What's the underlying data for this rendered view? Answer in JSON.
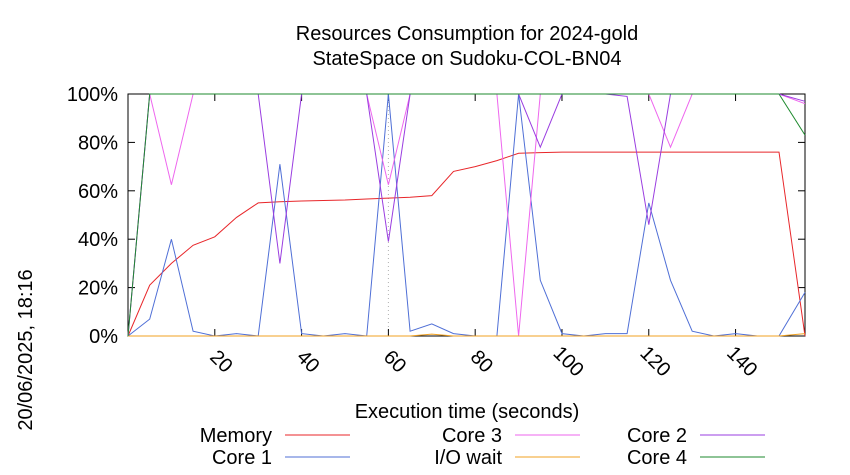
{
  "chart_data": {
    "type": "line",
    "title": [
      "Resources Consumption for 2024-gold",
      "StateSpace on Sudoku-COL-BN04"
    ],
    "xlabel": "Execution time (seconds)",
    "ylabel": "",
    "side_label": "20/06/2025, 18:16",
    "xlim": [
      0,
      156
    ],
    "ylim": [
      0,
      100
    ],
    "x_ticks": [
      20,
      40,
      60,
      80,
      100,
      120,
      140
    ],
    "y_ticks": [
      {
        "v": 0,
        "label": "0%"
      },
      {
        "v": 20,
        "label": "20%"
      },
      {
        "v": 40,
        "label": "40%"
      },
      {
        "v": 60,
        "label": "60%"
      },
      {
        "v": 80,
        "label": "80%"
      },
      {
        "v": 100,
        "label": "100%"
      }
    ],
    "grid": "x at 60 only (dotted)",
    "legend_position": "bottom",
    "series": [
      {
        "name": "Memory",
        "color": "#e8262a",
        "points": [
          [
            0,
            0
          ],
          [
            5,
            21
          ],
          [
            10,
            30
          ],
          [
            15,
            37.5
          ],
          [
            20,
            41
          ],
          [
            25,
            49
          ],
          [
            30,
            55
          ],
          [
            35,
            55.5
          ],
          [
            40,
            55.8
          ],
          [
            45,
            56
          ],
          [
            50,
            56.2
          ],
          [
            55,
            56.6
          ],
          [
            60,
            57
          ],
          [
            65,
            57.3
          ],
          [
            70,
            58
          ],
          [
            75,
            68
          ],
          [
            80,
            70
          ],
          [
            85,
            72.5
          ],
          [
            90,
            75.5
          ],
          [
            95,
            75.8
          ],
          [
            100,
            76
          ],
          [
            105,
            76
          ],
          [
            110,
            76
          ],
          [
            115,
            76
          ],
          [
            120,
            76
          ],
          [
            125,
            76
          ],
          [
            130,
            76
          ],
          [
            135,
            76
          ],
          [
            140,
            76
          ],
          [
            145,
            76
          ],
          [
            150,
            76
          ],
          [
            156,
            0
          ]
        ]
      },
      {
        "name": "Core 1",
        "color": "#4f6fd6",
        "points": [
          [
            0,
            0
          ],
          [
            5,
            7
          ],
          [
            10,
            40
          ],
          [
            15,
            2
          ],
          [
            20,
            0
          ],
          [
            25,
            1
          ],
          [
            30,
            0
          ],
          [
            35,
            71
          ],
          [
            40,
            1
          ],
          [
            45,
            0
          ],
          [
            50,
            1
          ],
          [
            55,
            0
          ],
          [
            60,
            100
          ],
          [
            65,
            2
          ],
          [
            70,
            5
          ],
          [
            75,
            1
          ],
          [
            80,
            0
          ],
          [
            85,
            0
          ],
          [
            90,
            100
          ],
          [
            95,
            23
          ],
          [
            100,
            1
          ],
          [
            105,
            0
          ],
          [
            110,
            1
          ],
          [
            115,
            1
          ],
          [
            120,
            55
          ],
          [
            125,
            23
          ],
          [
            130,
            2
          ],
          [
            135,
            0
          ],
          [
            140,
            1
          ],
          [
            145,
            0
          ],
          [
            150,
            0
          ],
          [
            156,
            18
          ]
        ]
      },
      {
        "name": "Core 3",
        "color": "#ee66ee",
        "points": [
          [
            0,
            0
          ],
          [
            5,
            100
          ],
          [
            10,
            62.5
          ],
          [
            15,
            100
          ],
          [
            20,
            100
          ],
          [
            25,
            100
          ],
          [
            30,
            100
          ],
          [
            35,
            100
          ],
          [
            40,
            100
          ],
          [
            45,
            100
          ],
          [
            50,
            100
          ],
          [
            55,
            100
          ],
          [
            60,
            62.5
          ],
          [
            65,
            100
          ],
          [
            70,
            100
          ],
          [
            75,
            100
          ],
          [
            80,
            100
          ],
          [
            85,
            100
          ],
          [
            90,
            0
          ],
          [
            95,
            100
          ],
          [
            100,
            100
          ],
          [
            105,
            100
          ],
          [
            110,
            100
          ],
          [
            115,
            100
          ],
          [
            120,
            100
          ],
          [
            125,
            78
          ],
          [
            130,
            100
          ],
          [
            135,
            100
          ],
          [
            140,
            100
          ],
          [
            145,
            100
          ],
          [
            150,
            100
          ],
          [
            156,
            96
          ]
        ]
      },
      {
        "name": "I/O wait",
        "color": "#f0a020",
        "points": [
          [
            0,
            0
          ],
          [
            5,
            0
          ],
          [
            10,
            0
          ],
          [
            15,
            0
          ],
          [
            20,
            0
          ],
          [
            25,
            0
          ],
          [
            30,
            0
          ],
          [
            35,
            0
          ],
          [
            40,
            0
          ],
          [
            45,
            0
          ],
          [
            50,
            0
          ],
          [
            55,
            0
          ],
          [
            60,
            0
          ],
          [
            65,
            0
          ],
          [
            70,
            0.8
          ],
          [
            75,
            0
          ],
          [
            80,
            0
          ],
          [
            85,
            0
          ],
          [
            90,
            0
          ],
          [
            95,
            0
          ],
          [
            100,
            0
          ],
          [
            105,
            0
          ],
          [
            110,
            0
          ],
          [
            115,
            0
          ],
          [
            120,
            0
          ],
          [
            125,
            0
          ],
          [
            130,
            0
          ],
          [
            135,
            0
          ],
          [
            140,
            0
          ],
          [
            145,
            0
          ],
          [
            150,
            0
          ],
          [
            156,
            1
          ]
        ]
      },
      {
        "name": "Core 2",
        "color": "#9a3de0",
        "points": [
          [
            0,
            0
          ],
          [
            5,
            100
          ],
          [
            10,
            100
          ],
          [
            15,
            100
          ],
          [
            20,
            100
          ],
          [
            25,
            100
          ],
          [
            30,
            100
          ],
          [
            35,
            30
          ],
          [
            40,
            100
          ],
          [
            45,
            100
          ],
          [
            50,
            100
          ],
          [
            55,
            100
          ],
          [
            60,
            39
          ],
          [
            65,
            100
          ],
          [
            70,
            100
          ],
          [
            75,
            100
          ],
          [
            80,
            100
          ],
          [
            85,
            100
          ],
          [
            90,
            100
          ],
          [
            95,
            78
          ],
          [
            100,
            100
          ],
          [
            105,
            100
          ],
          [
            110,
            100
          ],
          [
            115,
            99
          ],
          [
            120,
            46
          ],
          [
            125,
            100
          ],
          [
            130,
            100
          ],
          [
            135,
            100
          ],
          [
            140,
            100
          ],
          [
            145,
            100
          ],
          [
            150,
            100
          ],
          [
            156,
            97
          ]
        ]
      },
      {
        "name": "Core 4",
        "color": "#1e8a2e",
        "points": [
          [
            0,
            0
          ],
          [
            5,
            100
          ],
          [
            10,
            100
          ],
          [
            15,
            100
          ],
          [
            20,
            100
          ],
          [
            25,
            100
          ],
          [
            30,
            100
          ],
          [
            35,
            100
          ],
          [
            40,
            100
          ],
          [
            45,
            100
          ],
          [
            50,
            100
          ],
          [
            55,
            100
          ],
          [
            60,
            100
          ],
          [
            65,
            100
          ],
          [
            70,
            100
          ],
          [
            75,
            100
          ],
          [
            80,
            100
          ],
          [
            85,
            100
          ],
          [
            90,
            100
          ],
          [
            95,
            100
          ],
          [
            100,
            100
          ],
          [
            105,
            100
          ],
          [
            110,
            100
          ],
          [
            115,
            100
          ],
          [
            120,
            100
          ],
          [
            125,
            100
          ],
          [
            130,
            100
          ],
          [
            135,
            100
          ],
          [
            140,
            100
          ],
          [
            145,
            100
          ],
          [
            150,
            100
          ],
          [
            156,
            83
          ]
        ]
      }
    ]
  }
}
